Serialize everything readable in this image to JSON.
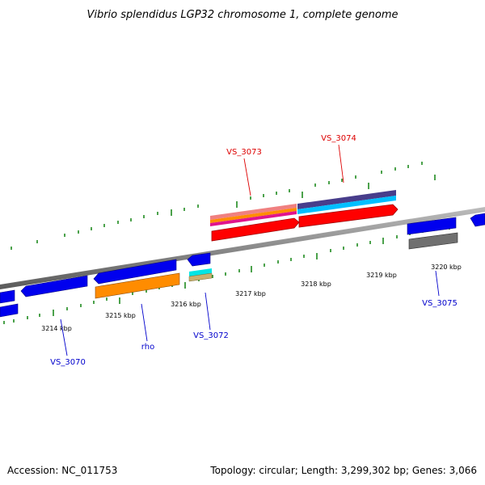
{
  "title": "Vibrio splendidus LGP32 chromosome 1, complete genome",
  "footer": {
    "accession": "Accession: NC_011753",
    "summary": "Topology: circular; Length: 3,299,302 bp; Genes: 3,066"
  },
  "colors": {
    "backbone": "#8c8c8c",
    "tick": "#1f8a1f",
    "label_top": "#dd0000",
    "label_bottom": "#0000cc"
  },
  "position_labels": [
    "3214 kbp",
    "3215 kbp",
    "3216 kbp",
    "3217 kbp",
    "3218 kbp",
    "3219 kbp",
    "3220 kbp"
  ],
  "gene_labels": {
    "vs3070": "VS_3070",
    "rho": "rho",
    "vs3072": "VS_3072",
    "vs3073": "VS_3073",
    "vs3074": "VS_3074",
    "vs3075": "VS_3075"
  }
}
